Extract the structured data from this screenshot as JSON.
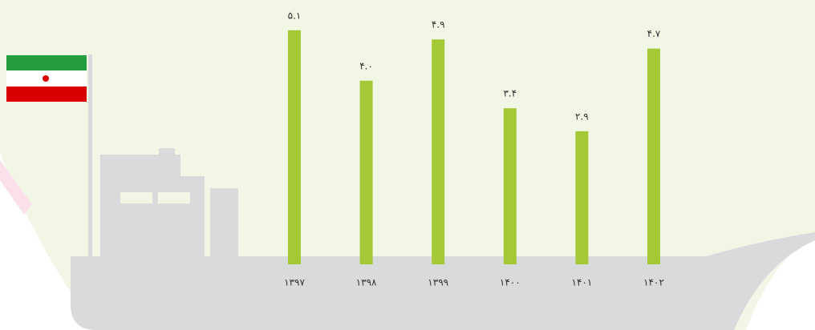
{
  "chart_data": {
    "type": "bar",
    "categories": [
      "۱۳۹۷",
      "۱۳۹۸",
      "۱۳۹۹",
      "۱۴۰۰",
      "۱۴۰۱",
      "۱۴۰۲"
    ],
    "values": [
      5.1,
      4.0,
      4.9,
      3.4,
      2.9,
      4.7
    ],
    "value_labels": [
      "۵.۱",
      "۴.۰",
      "۴.۹",
      "۳.۴",
      "۲.۹",
      "۴.۷"
    ],
    "color": "#a3c936"
  }
}
